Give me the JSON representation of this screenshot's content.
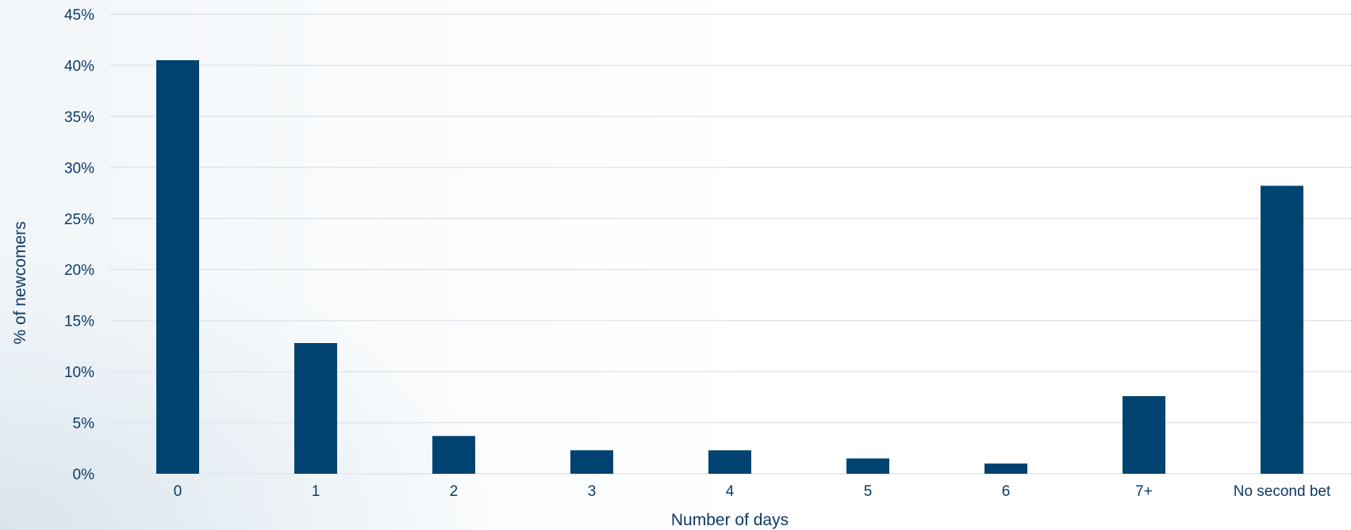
{
  "colors": {
    "bar": "#004370",
    "grid": "#dfe6ec",
    "text": "#0d3b66"
  },
  "chart_data": {
    "type": "bar",
    "title": "",
    "xlabel": "Number of days",
    "ylabel": "% of newcomers",
    "categories": [
      "0",
      "1",
      "2",
      "3",
      "4",
      "5",
      "6",
      "7+",
      "No second bet"
    ],
    "values": [
      40.5,
      12.8,
      3.7,
      2.3,
      2.3,
      1.5,
      1.0,
      7.6,
      28.2
    ],
    "ylim": [
      0,
      45
    ],
    "yticks": [
      0,
      5,
      10,
      15,
      20,
      25,
      30,
      35,
      40,
      45
    ],
    "ytick_labels": [
      "0%",
      "5%",
      "10%",
      "15%",
      "20%",
      "25%",
      "30%",
      "35%",
      "40%",
      "45%"
    ],
    "grid": true,
    "legend": "none"
  }
}
